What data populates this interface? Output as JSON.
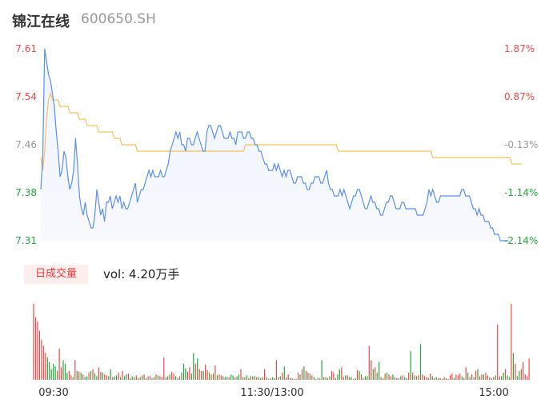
{
  "header": {
    "name": "锦江在线",
    "code": "600650.SH"
  },
  "volume": {
    "tab_label": "日成交量",
    "vol_text": "vol: 4.20万手"
  },
  "colors": {
    "up": "#f04848",
    "down": "#22aa3a",
    "neutral": "#999999",
    "price_line": "#5b8ff0",
    "avg_line": "#f5c15a"
  },
  "chart_data": [
    {
      "type": "line",
      "title": "",
      "x_ticks": [
        "09:30",
        "11:30/13:00",
        "15:00"
      ],
      "y_ticks_price": [
        "7.61",
        "7.54",
        "7.46",
        "7.38",
        "7.31"
      ],
      "y_ticks_pct": [
        "1.87%",
        "0.87%",
        "-0.13%",
        "-1.14%",
        "-2.14%"
      ],
      "ylim": [
        7.31,
        7.61
      ],
      "x_points": 241,
      "series": [
        {
          "values": [
            7.39,
            7.44,
            7.61,
            7.59,
            7.57,
            7.56,
            7.54,
            7.52,
            7.48,
            7.45,
            7.41,
            7.42,
            7.45,
            7.44,
            7.41,
            7.39,
            7.4,
            7.42,
            7.47,
            7.43,
            7.38,
            7.36,
            7.35,
            7.37,
            7.35,
            7.34,
            7.33,
            7.33,
            7.35,
            7.39,
            7.37,
            7.35,
            7.36,
            7.34,
            7.37,
            7.37,
            7.38,
            7.36,
            7.37,
            7.38,
            7.37,
            7.38,
            7.36,
            7.37,
            7.36,
            7.36,
            7.37,
            7.38,
            7.39,
            7.4,
            7.37,
            7.38,
            7.39,
            7.39,
            7.4,
            7.41,
            7.42,
            7.41,
            7.42,
            7.41,
            7.41,
            7.41,
            7.42,
            7.41,
            7.41,
            7.42,
            7.43,
            7.45,
            7.46,
            7.47,
            7.48,
            7.47,
            7.48,
            7.46,
            7.46,
            7.45,
            7.47,
            7.47,
            7.46,
            7.46,
            7.47,
            7.48,
            7.47,
            7.46,
            7.45,
            7.45,
            7.48,
            7.49,
            7.49,
            7.48,
            7.47,
            7.48,
            7.49,
            7.49,
            7.48,
            7.47,
            7.47,
            7.47,
            7.48,
            7.47,
            7.47,
            7.46,
            7.48,
            7.48,
            7.48,
            7.47,
            7.47,
            7.48,
            7.48,
            7.47,
            7.47,
            7.46,
            7.46,
            7.45,
            7.45,
            7.44,
            7.43,
            7.43,
            7.42,
            7.42,
            7.42,
            7.43,
            7.42,
            7.43,
            7.42,
            7.41,
            7.42,
            7.41,
            7.42,
            7.42,
            7.41,
            7.4,
            7.4,
            7.41,
            7.41,
            7.41,
            7.4,
            7.4,
            7.39,
            7.39,
            7.4,
            7.4,
            7.41,
            7.41,
            7.41,
            7.4,
            7.4,
            7.41,
            7.42,
            7.4,
            7.39,
            7.39,
            7.38,
            7.38,
            7.38,
            7.39,
            7.38,
            7.39,
            7.38,
            7.37,
            7.36,
            7.37,
            7.38,
            7.38,
            7.39,
            7.39,
            7.38,
            7.37,
            7.36,
            7.36,
            7.37,
            7.38,
            7.37,
            7.37,
            7.36,
            7.36,
            7.35,
            7.35,
            7.36,
            7.37,
            7.37,
            7.38,
            7.38,
            7.37,
            7.36,
            7.36,
            7.36,
            7.37,
            7.37,
            7.36,
            7.36,
            7.36,
            7.36,
            7.36,
            7.36,
            7.35,
            7.35,
            7.35,
            7.35,
            7.36,
            7.37,
            7.39,
            7.38,
            7.39,
            7.38,
            7.37,
            7.37,
            7.38,
            7.38,
            7.38,
            7.38,
            7.38,
            7.38,
            7.38,
            7.38,
            7.38,
            7.38,
            7.38,
            7.39,
            7.39,
            7.38,
            7.38,
            7.38,
            7.37,
            7.36,
            7.36,
            7.35,
            7.36,
            7.35,
            7.35,
            7.34,
            7.34,
            7.34,
            7.33,
            7.33,
            7.32,
            7.32,
            7.32,
            7.31,
            7.31,
            7.31,
            7.31,
            7.31
          ]
        },
        {
          "values": [
            7.44,
            7.42,
            7.45,
            7.5,
            7.53,
            7.54,
            7.53,
            7.53,
            7.53,
            7.53,
            7.52,
            7.52,
            7.52,
            7.52,
            7.52,
            7.51,
            7.51,
            7.51,
            7.51,
            7.51,
            7.5,
            7.5,
            7.5,
            7.5,
            7.49,
            7.49,
            7.49,
            7.49,
            7.49,
            7.49,
            7.48,
            7.48,
            7.48,
            7.48,
            7.48,
            7.48,
            7.48,
            7.48,
            7.47,
            7.47,
            7.47,
            7.47,
            7.46,
            7.46,
            7.46,
            7.46,
            7.46,
            7.46,
            7.46,
            7.46,
            7.45,
            7.45,
            7.45,
            7.45,
            7.45,
            7.45,
            7.45,
            7.45,
            7.45,
            7.45,
            7.45,
            7.45,
            7.45,
            7.45,
            7.45,
            7.45,
            7.45,
            7.45,
            7.45,
            7.45,
            7.45,
            7.45,
            7.45,
            7.45,
            7.45,
            7.45,
            7.45,
            7.45,
            7.45,
            7.45,
            7.45,
            7.45,
            7.45,
            7.45,
            7.45,
            7.45,
            7.45,
            7.45,
            7.45,
            7.45,
            7.45,
            7.45,
            7.45,
            7.45,
            7.45,
            7.45,
            7.45,
            7.45,
            7.45,
            7.45,
            7.45,
            7.45,
            7.45,
            7.45,
            7.45,
            7.45,
            7.46,
            7.46,
            7.46,
            7.46,
            7.46,
            7.46,
            7.46,
            7.46,
            7.46,
            7.46,
            7.46,
            7.46,
            7.46,
            7.46,
            7.46,
            7.46,
            7.46,
            7.46,
            7.46,
            7.46,
            7.46,
            7.46,
            7.46,
            7.46,
            7.46,
            7.46,
            7.46,
            7.46,
            7.46,
            7.46,
            7.46,
            7.46,
            7.46,
            7.46,
            7.46,
            7.46,
            7.46,
            7.46,
            7.46,
            7.46,
            7.46,
            7.46,
            7.46,
            7.46,
            7.46,
            7.46,
            7.46,
            7.46,
            7.45,
            7.45,
            7.45,
            7.45,
            7.45,
            7.45,
            7.45,
            7.45,
            7.45,
            7.45,
            7.45,
            7.45,
            7.45,
            7.45,
            7.45,
            7.45,
            7.45,
            7.45,
            7.45,
            7.45,
            7.45,
            7.45,
            7.45,
            7.45,
            7.45,
            7.45,
            7.45,
            7.45,
            7.45,
            7.45,
            7.45,
            7.45,
            7.45,
            7.45,
            7.45,
            7.45,
            7.45,
            7.45,
            7.45,
            7.45,
            7.45,
            7.45,
            7.45,
            7.45,
            7.45,
            7.45,
            7.45,
            7.45,
            7.45,
            7.44,
            7.44,
            7.44,
            7.44,
            7.44,
            7.44,
            7.44,
            7.44,
            7.44,
            7.44,
            7.44,
            7.44,
            7.44,
            7.44,
            7.44,
            7.44,
            7.44,
            7.44,
            7.44,
            7.44,
            7.44,
            7.44,
            7.44,
            7.44,
            7.44,
            7.44,
            7.44,
            7.44,
            7.44,
            7.44,
            7.44,
            7.44,
            7.44,
            7.44,
            7.44,
            7.44,
            7.44,
            7.44,
            7.44,
            7.44,
            7.44,
            7.43,
            7.43,
            7.43,
            7.43,
            7.43,
            7.43
          ]
        }
      ]
    },
    {
      "type": "bar",
      "title": "",
      "x_points": 241,
      "values": [
        85,
        70,
        65,
        55,
        45,
        38,
        30,
        25,
        20,
        12,
        18,
        15,
        10,
        35,
        14,
        22,
        18,
        8,
        10,
        5,
        3,
        22,
        10,
        9,
        8,
        6,
        3,
        4,
        8,
        10,
        12,
        7,
        4,
        14,
        9,
        8,
        6,
        5,
        4,
        12,
        3,
        4,
        5,
        8,
        3,
        10,
        4,
        6,
        7,
        2,
        4,
        3,
        5,
        2,
        3,
        5,
        6,
        2,
        4,
        4,
        2,
        3,
        6,
        5,
        4,
        3,
        25,
        3,
        4,
        6,
        9,
        7,
        4,
        2,
        4,
        8,
        18,
        13,
        9,
        14,
        7,
        30,
        18,
        24,
        12,
        10,
        10,
        17,
        11,
        8,
        6,
        7,
        16,
        5,
        6,
        5,
        4,
        3,
        3,
        3,
        6,
        5,
        3,
        4,
        6,
        12,
        3,
        3,
        5,
        2,
        4,
        4,
        4,
        3,
        3,
        2,
        3,
        12,
        3,
        1,
        2,
        3,
        2,
        22,
        3,
        4,
        8,
        15,
        3,
        6,
        2,
        2,
        1,
        1,
        8,
        6,
        12,
        15,
        10,
        8,
        7,
        5,
        3,
        1,
        2,
        2,
        22,
        3,
        3,
        2,
        4,
        10,
        8,
        2,
        6,
        12,
        14,
        3,
        5,
        5,
        3,
        3,
        1,
        2,
        11,
        10,
        6,
        2,
        4,
        4,
        38,
        22,
        12,
        14,
        8,
        20,
        3,
        2,
        7,
        8,
        6,
        4,
        6,
        3,
        2,
        2,
        4,
        5,
        3,
        2,
        8,
        32,
        8,
        5,
        4,
        5,
        40,
        6,
        4,
        3,
        2,
        7,
        4,
        2,
        3,
        2,
        2,
        1,
        3,
        2,
        1,
        5,
        7,
        2,
        6,
        5,
        7,
        4,
        2,
        14,
        8,
        3,
        6,
        3,
        10,
        12,
        4,
        6,
        6,
        8,
        5,
        3,
        2,
        3,
        5,
        62,
        4,
        4,
        8,
        12,
        5,
        3,
        85,
        30,
        18,
        4,
        10,
        12,
        20,
        6,
        4,
        24
      ],
      "colors": [
        "up",
        "up",
        "up",
        "up",
        "up",
        "up",
        "up",
        "down",
        "down",
        "down",
        "down",
        "down",
        "up",
        "up",
        "up",
        "down",
        "down",
        "down",
        "up",
        "up",
        "down",
        "up",
        "down",
        "up",
        "down",
        "up",
        "down",
        "down",
        "up",
        "down",
        "up",
        "down",
        "down",
        "up",
        "up",
        "down",
        "up",
        "up",
        "up",
        "down",
        "up",
        "down",
        "down",
        "up",
        "down",
        "up",
        "down",
        "down",
        "up",
        "up",
        "down",
        "down",
        "up",
        "down",
        "up",
        "down",
        "up",
        "down",
        "up",
        "up",
        "up",
        "down",
        "up",
        "down",
        "up",
        "up",
        "up",
        "down",
        "up",
        "down",
        "up",
        "up",
        "down",
        "down",
        "up",
        "down",
        "down",
        "down",
        "up",
        "up",
        "down",
        "down",
        "up",
        "down",
        "up",
        "up",
        "down",
        "up",
        "up",
        "down",
        "up",
        "down",
        "up",
        "down",
        "up",
        "up",
        "down",
        "down",
        "down",
        "up",
        "down",
        "down",
        "up",
        "down",
        "down",
        "up",
        "down",
        "up",
        "down",
        "up",
        "down",
        "up",
        "down",
        "up",
        "down",
        "down",
        "up",
        "up",
        "down",
        "up",
        "up",
        "down",
        "down",
        "up",
        "up",
        "down",
        "up",
        "down",
        "up",
        "up",
        "down",
        "up",
        "down",
        "up",
        "up",
        "down",
        "up",
        "down",
        "up",
        "down",
        "up",
        "up",
        "down",
        "up",
        "down",
        "up",
        "down",
        "up",
        "down",
        "up",
        "down",
        "up",
        "up",
        "down",
        "down",
        "down",
        "up",
        "up",
        "down",
        "up",
        "down",
        "down",
        "up",
        "up",
        "up",
        "down",
        "up",
        "up",
        "down",
        "down",
        "up",
        "up",
        "down",
        "up",
        "down",
        "down",
        "up",
        "down",
        "up",
        "down",
        "up",
        "up",
        "down",
        "up",
        "down",
        "up",
        "down",
        "up",
        "down",
        "up",
        "up",
        "down",
        "up",
        "down",
        "up",
        "up",
        "down",
        "up",
        "up",
        "up",
        "down",
        "up",
        "down",
        "up",
        "down",
        "down",
        "up",
        "up",
        "up",
        "down",
        "up",
        "up",
        "up",
        "down",
        "up",
        "up",
        "up",
        "down",
        "down",
        "up",
        "down",
        "up",
        "up",
        "down",
        "up",
        "down",
        "up",
        "up",
        "down",
        "up",
        "up",
        "up",
        "down",
        "up",
        "down",
        "up",
        "up",
        "down",
        "down",
        "up",
        "down",
        "down",
        "up",
        "down",
        "up",
        "down",
        "down"
      ]
    }
  ]
}
